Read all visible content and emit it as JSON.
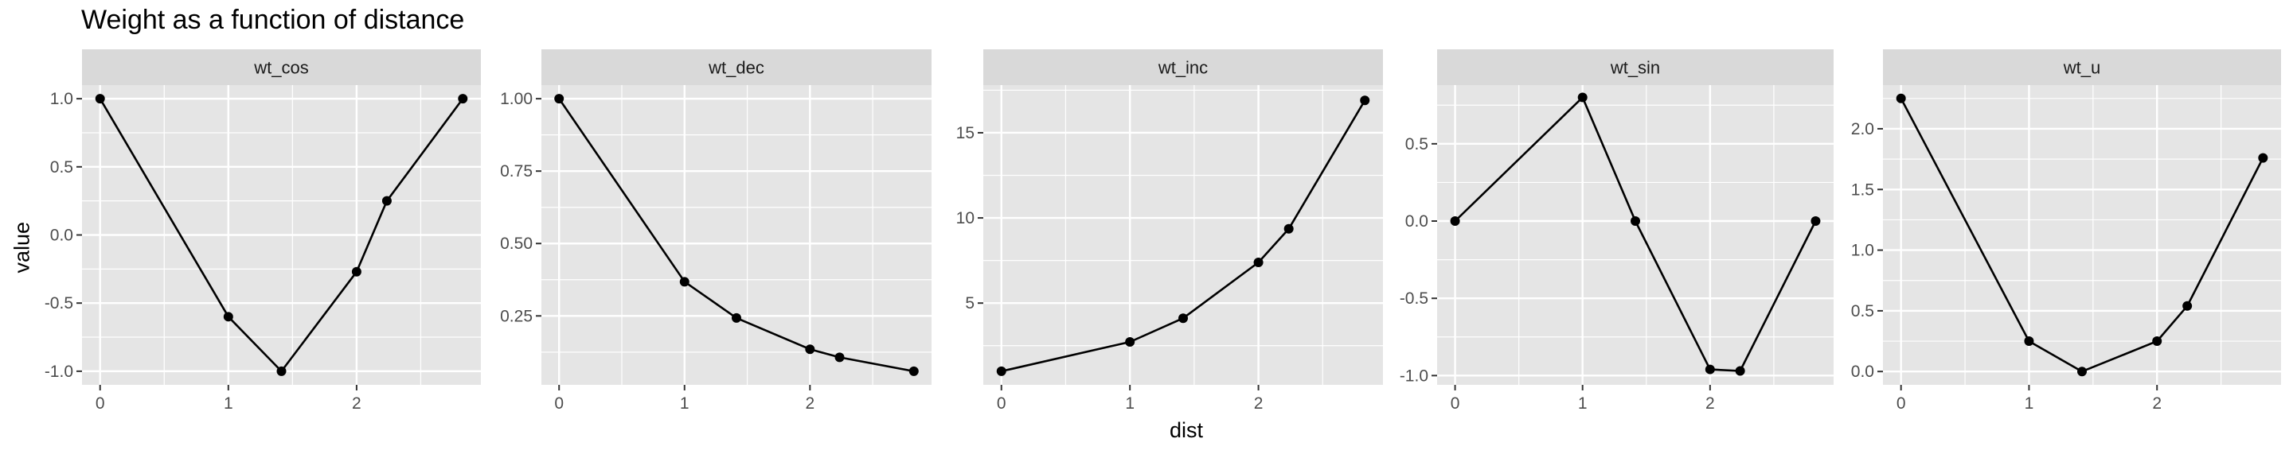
{
  "title": "Weight as a function of distance",
  "chart_data": {
    "type": "line",
    "title": "Weight as a function of distance",
    "xlabel": "dist",
    "ylabel": "value",
    "x": [
      0,
      1,
      1.414,
      2,
      2.236,
      2.828
    ],
    "x_ticks": [
      "0",
      "1",
      "2"
    ],
    "panels": [
      {
        "strip": "wt_cos",
        "values": [
          1.0,
          -0.6,
          -1.0,
          -0.27,
          0.25,
          1.0
        ],
        "ylim": [
          -1.1,
          1.1
        ],
        "y_ticks": [
          -1.0,
          -0.5,
          0.0,
          0.5,
          1.0
        ],
        "y_tick_labels": [
          "-1.0",
          "-0.5",
          "0.0",
          "0.5",
          "1.0"
        ]
      },
      {
        "strip": "wt_dec",
        "values": [
          1.0,
          0.368,
          0.243,
          0.135,
          0.107,
          0.059
        ],
        "ylim": [
          0.012,
          1.047
        ],
        "y_ticks": [
          0.25,
          0.5,
          0.75,
          1.0
        ],
        "y_tick_labels": [
          "0.25",
          "0.50",
          "0.75",
          "1.00"
        ]
      },
      {
        "strip": "wt_inc",
        "values": [
          1.0,
          2.72,
          4.11,
          7.39,
          9.36,
          16.9
        ],
        "ylim": [
          0.2,
          17.8
        ],
        "y_ticks": [
          5,
          10,
          15
        ],
        "y_tick_labels": [
          "5",
          "10",
          "15"
        ]
      },
      {
        "strip": "wt_sin",
        "values": [
          0.0,
          0.8,
          0.0,
          -0.96,
          -0.97,
          0.0
        ],
        "ylim": [
          -1.06,
          0.88
        ],
        "y_ticks": [
          -1.0,
          -0.5,
          0.0,
          0.5
        ],
        "y_tick_labels": [
          "-1.0",
          "-0.5",
          "0.0",
          "0.5"
        ]
      },
      {
        "strip": "wt_u",
        "values": [
          2.25,
          0.25,
          0.0,
          0.25,
          0.54,
          1.76
        ],
        "ylim": [
          -0.11,
          2.36
        ],
        "y_ticks": [
          0.0,
          0.5,
          1.0,
          1.5,
          2.0
        ],
        "y_tick_labels": [
          "0.0",
          "0.5",
          "1.0",
          "1.5",
          "2.0"
        ]
      }
    ],
    "grid": true,
    "legend": "none"
  },
  "colors": {
    "panel_background": "#e5e5e5",
    "strip_background": "#d9d9d9",
    "grid": "#ffffff",
    "line": "#000000",
    "point": "#000000",
    "tick_text": "#4d4d4d"
  }
}
